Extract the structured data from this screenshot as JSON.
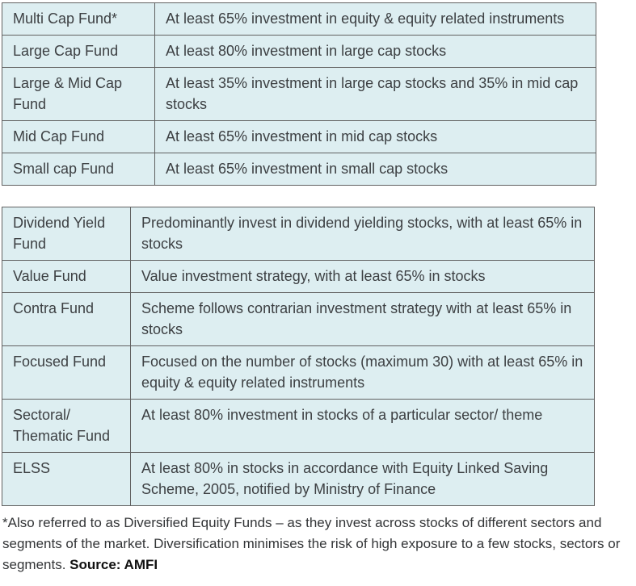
{
  "colors": {
    "cell_background": "#ddeef1",
    "table_border": "#616161",
    "body_text": "#3d4043",
    "page_background": "#ffffff"
  },
  "tables": [
    {
      "name": "equity-fund-categories-market-cap",
      "rows": [
        {
          "category": "Multi Cap Fund*",
          "description": "At least 65% investment in equity & equity related instruments"
        },
        {
          "category": "Large Cap Fund",
          "description": "At least 80% investment in large cap stocks"
        },
        {
          "category": "Large & Mid Cap Fund",
          "description": "At least 35% investment in large cap stocks and 35% in mid cap stocks"
        },
        {
          "category": "Mid Cap Fund",
          "description": "At least 65% investment in mid cap stocks"
        },
        {
          "category": "Small cap Fund",
          "description": "At least 65% investment in small cap stocks"
        }
      ]
    },
    {
      "name": "equity-fund-categories-strategy",
      "rows": [
        {
          "category": "Dividend Yield Fund",
          "description": "Predominantly invest in dividend yielding stocks, with at least 65% in stocks"
        },
        {
          "category": "Value Fund",
          "description": "Value investment strategy, with at least 65% in stocks"
        },
        {
          "category": "Contra Fund",
          "description": "Scheme follows contrarian investment strategy with at least 65% in stocks"
        },
        {
          "category": "Focused Fund",
          "description": "Focused on the number of stocks (maximum 30) with at least 65% in equity & equity related instruments"
        },
        {
          "category": "Sectoral/ Thematic Fund",
          "description": "At least 80% investment in stocks of a particular sector/ theme"
        },
        {
          "category": "ELSS",
          "description": "At least 80% in stocks in accordance with Equity Linked Saving Scheme, 2005, notified by Ministry of Finance"
        }
      ]
    }
  ],
  "footnote": {
    "text": "*Also referred to as Diversified Equity Funds – as they invest across stocks of different sectors and segments of the market. Diversification minimises the risk of high exposure to a few stocks, sectors or segments. ",
    "source_label": "Source: AMFI"
  }
}
